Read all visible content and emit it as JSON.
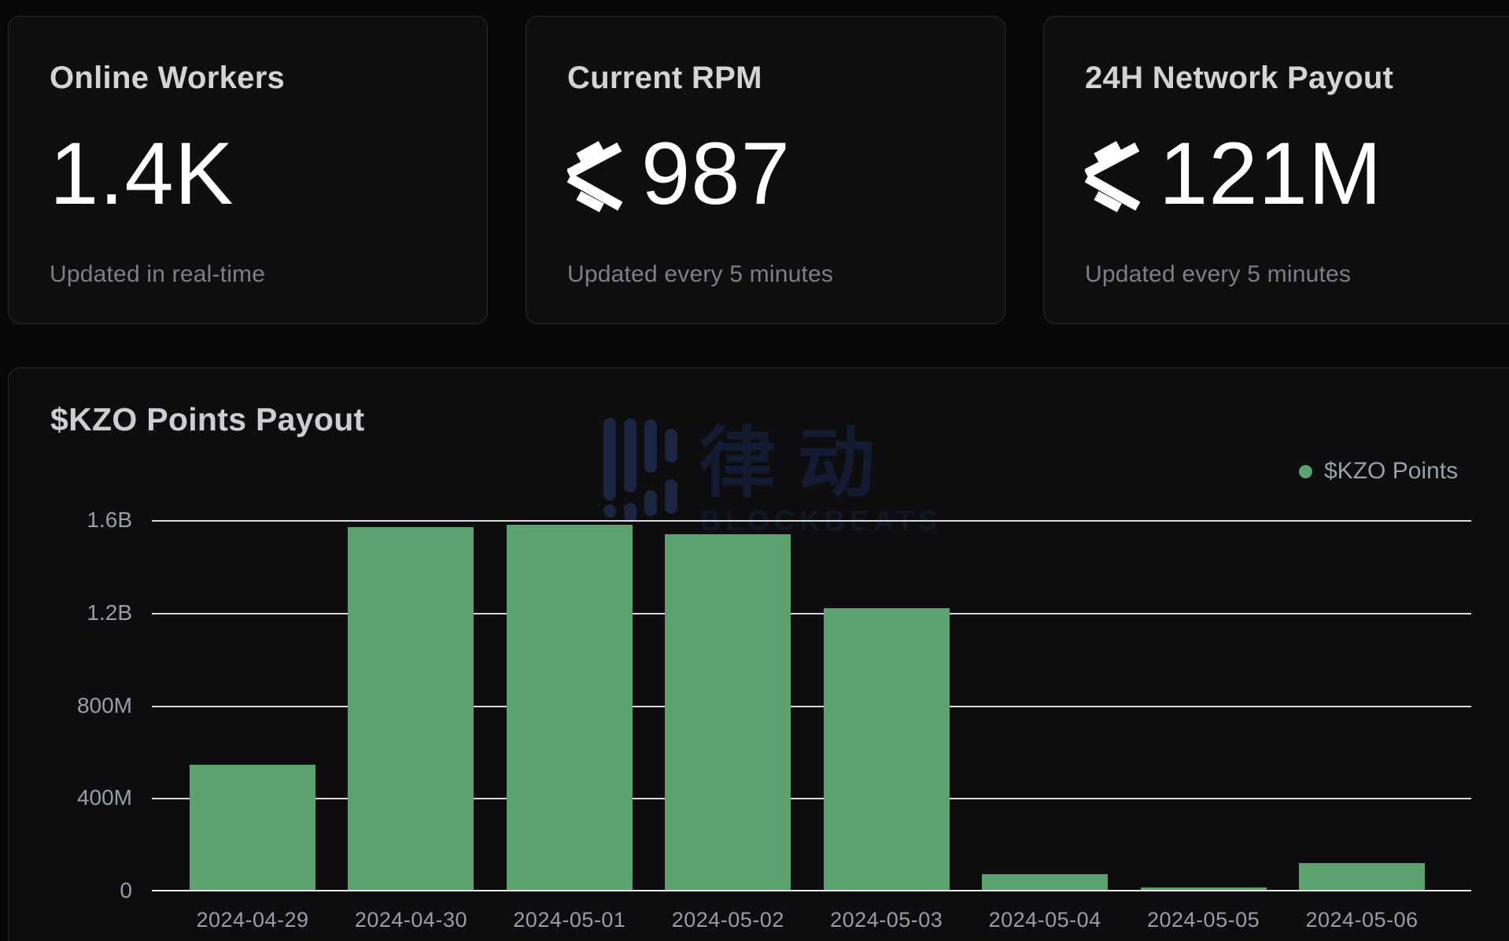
{
  "stats": [
    {
      "label": "Online Workers",
      "value": "1.4K",
      "note": "Updated in real-time"
    },
    {
      "label": "Current RPM",
      "value": "987",
      "note": "Updated every 5 minutes"
    },
    {
      "label": "24H Network Payout",
      "value": "121M",
      "note": "Updated every 5 minutes"
    }
  ],
  "chart": {
    "title": "$KZO Points Payout",
    "legend_label": "$KZO Points"
  },
  "chart_data": {
    "type": "bar",
    "title": "$KZO Points Payout",
    "series_name": "$KZO Points",
    "categories": [
      "2024-04-29",
      "2024-04-30",
      "2024-05-01",
      "2024-05-02",
      "2024-05-03",
      "2024-05-04",
      "2024-05-05",
      "2024-05-06"
    ],
    "values_millions": [
      545,
      1570,
      1580,
      1540,
      1220,
      70,
      15,
      120
    ],
    "y_tick_labels": [
      "0",
      "400M",
      "800M",
      "1.2B",
      "1.6B"
    ],
    "y_tick_values_millions": [
      0,
      400,
      800,
      1200,
      1600
    ],
    "ylim_millions": [
      0,
      1600
    ],
    "grid": "horizontal",
    "legend_position": "top-right",
    "bar_color": "#5ca26e"
  },
  "watermark": {
    "cjk_text": "律动",
    "latin_text": "BLOCKBEATS"
  },
  "colors": {
    "background": "#070708",
    "card_background": "#0e0e10",
    "card_border": "#2a2a2d",
    "bar_green": "#5ca26e",
    "grid_line": "#d9d9d9",
    "axis_line": "#f0f0f0",
    "value_text": "#ffffff",
    "label_text": "#d3d4d6",
    "muted_text": "#7e7f84",
    "axis_text": "#989ea6",
    "watermark_navy": "#1b2541"
  }
}
